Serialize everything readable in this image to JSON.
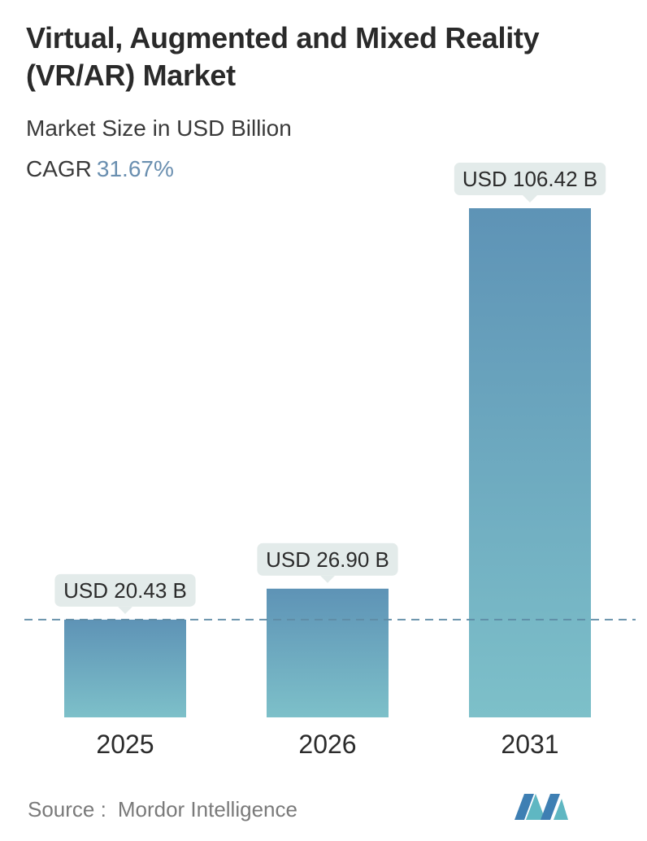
{
  "title": "Virtual, Augmented and Mixed Reality (VR/AR) Market",
  "subtitle": "Market Size in USD Billion",
  "cagr": {
    "label": "CAGR",
    "value": "31.67%"
  },
  "source": {
    "label": "Source :",
    "value": "Mordor Intelligence"
  },
  "colors": {
    "bar_top": "#5e93b6",
    "bar_bottom": "#7dc0c9",
    "label_bg": "#e3ebea",
    "cagr": "#6a8fb0",
    "dashed_line": "#5f8ba5"
  },
  "chart_data": {
    "type": "bar",
    "categories": [
      "2025",
      "2026",
      "2031"
    ],
    "values": [
      20.43,
      26.9,
      106.42
    ],
    "data_labels": [
      "USD 20.43 B",
      "USD 26.90 B",
      "USD 106.42 B"
    ],
    "title": "Virtual, Augmented and Mixed Reality (VR/AR) Market",
    "ylabel": "",
    "xlabel": "",
    "ylim": [
      0,
      106.42
    ],
    "grid": false,
    "reference_line": {
      "value": 20.43,
      "style": "dashed"
    }
  }
}
